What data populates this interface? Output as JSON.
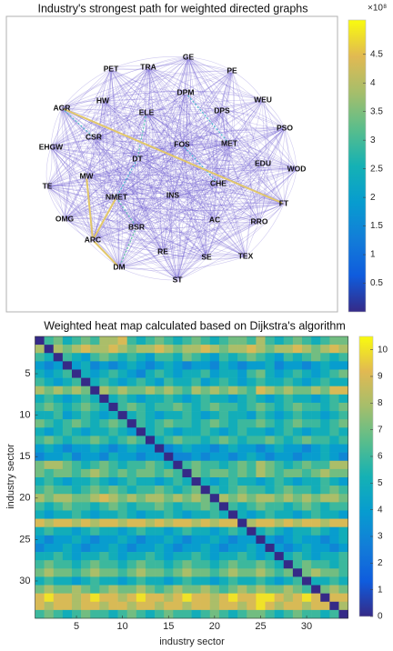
{
  "chart_data": [
    {
      "type": "network",
      "title": "Industry's strongest path for weighted directed graphs",
      "nodes": [
        "GE",
        "PE",
        "TRA",
        "PET",
        "DPM",
        "WEU",
        "HW",
        "AGR",
        "ELE",
        "DPS",
        "PSO",
        "CSR",
        "FOS",
        "MET",
        "EHGW",
        "DT",
        "EDU",
        "WOD",
        "MW",
        "TE",
        "CHE",
        "NMET",
        "INS",
        "FT",
        "OMG",
        "AC",
        "BSR",
        "RRO",
        "ARC",
        "RE",
        "SE",
        "TEX",
        "DM",
        "ST"
      ],
      "colormap": "parula",
      "clim": [
        0,
        510000000
      ],
      "colorbar_exponent": "×10⁸",
      "cticks": [
        {
          "value": 50000000,
          "label": "0.5"
        },
        {
          "value": 100000000,
          "label": "1"
        },
        {
          "value": 150000000,
          "label": "1.5"
        },
        {
          "value": 200000000,
          "label": "2"
        },
        {
          "value": 250000000,
          "label": "2.5"
        },
        {
          "value": 300000000,
          "label": "3"
        },
        {
          "value": 350000000,
          "label": "3.5"
        },
        {
          "value": 400000000,
          "label": "4"
        },
        {
          "value": 450000000,
          "label": "4.5"
        }
      ]
    },
    {
      "type": "heatmap",
      "title": "Weighted heat map calculated based on Dijkstra's algorithm",
      "xlabel": "industry sector",
      "ylabel": "industry sector",
      "colormap": "parula",
      "xlim": [
        0.5,
        34.5
      ],
      "ylim": [
        0.5,
        34.5
      ],
      "xticks": [
        5,
        10,
        15,
        20,
        25,
        30
      ],
      "yticks": [
        5,
        10,
        15,
        20,
        25,
        30
      ],
      "clim": [
        0,
        10.5
      ],
      "cticks": [
        0,
        1,
        2,
        3,
        4,
        5,
        6,
        7,
        8,
        9,
        10
      ],
      "values": [
        [
          0,
          6,
          7,
          5,
          6,
          7,
          6,
          8,
          8,
          9,
          6,
          5,
          6,
          7,
          6,
          5,
          6,
          7,
          6,
          5,
          6,
          7,
          7,
          6,
          8,
          6,
          5,
          6,
          7,
          6,
          5,
          6,
          7,
          7
        ],
        [
          8,
          0,
          8,
          7,
          8,
          9,
          8,
          8,
          9,
          8,
          7,
          8,
          8,
          9,
          8,
          7,
          8,
          8,
          9,
          8,
          7,
          8,
          8,
          9,
          8,
          7,
          8,
          8,
          9,
          8,
          7,
          8,
          9,
          8
        ],
        [
          6,
          5,
          0,
          6,
          5,
          4,
          6,
          7,
          6,
          5,
          6,
          5,
          4,
          6,
          6,
          5,
          7,
          6,
          5,
          4,
          6,
          5,
          6,
          7,
          6,
          5,
          4,
          6,
          5,
          6,
          7,
          6,
          5,
          6
        ],
        [
          4,
          3,
          4,
          0,
          4,
          5,
          3,
          4,
          3,
          4,
          5,
          4,
          3,
          4,
          5,
          4,
          3,
          4,
          4,
          3,
          5,
          4,
          3,
          4,
          4,
          5,
          3,
          4,
          4,
          3,
          4,
          5,
          4,
          4
        ],
        [
          5,
          4,
          5,
          6,
          0,
          5,
          4,
          5,
          6,
          5,
          4,
          3,
          5,
          6,
          5,
          4,
          5,
          5,
          6,
          4,
          5,
          5,
          4,
          6,
          7,
          5,
          4,
          5,
          6,
          5,
          4,
          5,
          6,
          7
        ],
        [
          6,
          5,
          4,
          5,
          6,
          0,
          5,
          6,
          5,
          4,
          5,
          6,
          5,
          4,
          6,
          5,
          5,
          6,
          4,
          5,
          6,
          5,
          4,
          5,
          6,
          5,
          5,
          6,
          5,
          4,
          5,
          6,
          5,
          5
        ],
        [
          8,
          7,
          8,
          7,
          8,
          7,
          0,
          8,
          7,
          8,
          7,
          7,
          8,
          7,
          8,
          7,
          6,
          8,
          7,
          8,
          7,
          8,
          7,
          6,
          9,
          8,
          7,
          8,
          7,
          7,
          8,
          7,
          9,
          9
        ],
        [
          5,
          6,
          5,
          4,
          5,
          6,
          5,
          0,
          5,
          6,
          5,
          4,
          5,
          5,
          6,
          5,
          4,
          5,
          6,
          5,
          5,
          4,
          5,
          6,
          5,
          4,
          5,
          6,
          5,
          5,
          4,
          5,
          6,
          5
        ],
        [
          6,
          7,
          6,
          5,
          6,
          7,
          6,
          5,
          0,
          6,
          7,
          6,
          5,
          6,
          6,
          7,
          6,
          5,
          6,
          7,
          6,
          6,
          5,
          6,
          7,
          6,
          5,
          6,
          7,
          6,
          6,
          5,
          6,
          7
        ],
        [
          5,
          5,
          6,
          4,
          5,
          6,
          5,
          4,
          5,
          0,
          5,
          6,
          5,
          4,
          5,
          5,
          6,
          5,
          4,
          5,
          6,
          5,
          5,
          4,
          6,
          5,
          4,
          5,
          6,
          5,
          5,
          4,
          5,
          6
        ],
        [
          7,
          6,
          5,
          6,
          7,
          6,
          5,
          6,
          7,
          6,
          0,
          6,
          5,
          6,
          7,
          6,
          6,
          5,
          6,
          7,
          6,
          5,
          6,
          6,
          7,
          6,
          5,
          6,
          7,
          6,
          6,
          5,
          6,
          7
        ],
        [
          5,
          4,
          5,
          6,
          5,
          4,
          5,
          5,
          6,
          5,
          4,
          0,
          5,
          6,
          5,
          4,
          5,
          5,
          6,
          5,
          4,
          5,
          6,
          5,
          5,
          4,
          5,
          6,
          5,
          4,
          5,
          5,
          6,
          5
        ],
        [
          6,
          7,
          6,
          5,
          6,
          6,
          7,
          6,
          5,
          6,
          7,
          6,
          0,
          5,
          6,
          7,
          6,
          6,
          5,
          6,
          7,
          6,
          5,
          6,
          6,
          7,
          6,
          5,
          6,
          7,
          6,
          6,
          5,
          6
        ],
        [
          4,
          5,
          4,
          3,
          4,
          4,
          5,
          4,
          3,
          4,
          5,
          4,
          4,
          0,
          3,
          4,
          5,
          4,
          4,
          3,
          4,
          5,
          4,
          4,
          3,
          4,
          5,
          4,
          4,
          3,
          4,
          5,
          4,
          4
        ],
        [
          3,
          4,
          4,
          5,
          3,
          4,
          4,
          3,
          5,
          4,
          4,
          3,
          4,
          4,
          0,
          3,
          3,
          4,
          3,
          4,
          4,
          3,
          4,
          5,
          4,
          3,
          4,
          4,
          3,
          4,
          4,
          5,
          4,
          3
        ],
        [
          7,
          8,
          8,
          7,
          6,
          5,
          6,
          7,
          6,
          5,
          6,
          6,
          7,
          6,
          5,
          0,
          6,
          7,
          6,
          6,
          5,
          6,
          7,
          6,
          8,
          7,
          6,
          5,
          6,
          7,
          6,
          6,
          8,
          8
        ],
        [
          7,
          6,
          7,
          7,
          6,
          7,
          8,
          7,
          6,
          7,
          6,
          7,
          7,
          6,
          7,
          6,
          0,
          7,
          6,
          7,
          7,
          6,
          7,
          6,
          8,
          7,
          6,
          7,
          7,
          6,
          7,
          8,
          7,
          7
        ],
        [
          5,
          6,
          5,
          4,
          5,
          5,
          6,
          5,
          4,
          5,
          6,
          5,
          5,
          4,
          5,
          6,
          5,
          0,
          5,
          4,
          5,
          6,
          5,
          5,
          4,
          5,
          6,
          5,
          4,
          5,
          5,
          6,
          5,
          4
        ],
        [
          6,
          7,
          6,
          6,
          5,
          6,
          7,
          6,
          7,
          6,
          5,
          6,
          6,
          7,
          6,
          5,
          6,
          7,
          0,
          6,
          5,
          6,
          7,
          6,
          6,
          5,
          6,
          7,
          6,
          6,
          5,
          6,
          7,
          6
        ],
        [
          8,
          7,
          8,
          8,
          7,
          7,
          8,
          9,
          8,
          7,
          8,
          7,
          8,
          8,
          7,
          8,
          7,
          8,
          7,
          0,
          8,
          7,
          8,
          7,
          8,
          8,
          7,
          8,
          7,
          8,
          7,
          8,
          8,
          7
        ],
        [
          6,
          5,
          6,
          7,
          6,
          6,
          5,
          6,
          7,
          6,
          5,
          6,
          6,
          7,
          6,
          5,
          6,
          6,
          7,
          6,
          0,
          6,
          5,
          6,
          7,
          6,
          6,
          5,
          6,
          7,
          6,
          5,
          6,
          6
        ],
        [
          5,
          4,
          5,
          5,
          6,
          5,
          4,
          5,
          5,
          6,
          5,
          4,
          5,
          5,
          6,
          5,
          4,
          5,
          5,
          6,
          5,
          0,
          5,
          4,
          5,
          6,
          5,
          5,
          4,
          5,
          6,
          5,
          5,
          4
        ],
        [
          9,
          8,
          9,
          9,
          8,
          9,
          8,
          9,
          9,
          8,
          9,
          9,
          8,
          9,
          8,
          9,
          9,
          8,
          9,
          8,
          9,
          9,
          0,
          8,
          9,
          9,
          8,
          9,
          8,
          9,
          9,
          8,
          9,
          9
        ],
        [
          5,
          6,
          5,
          5,
          4,
          5,
          6,
          5,
          5,
          4,
          5,
          6,
          5,
          5,
          4,
          5,
          6,
          5,
          5,
          4,
          5,
          6,
          5,
          0,
          5,
          6,
          5,
          4,
          5,
          5,
          6,
          5,
          4,
          5
        ],
        [
          4,
          3,
          4,
          4,
          5,
          4,
          3,
          4,
          4,
          5,
          4,
          3,
          4,
          4,
          5,
          4,
          3,
          4,
          4,
          5,
          4,
          3,
          4,
          4,
          0,
          4,
          3,
          4,
          5,
          4,
          4,
          3,
          4,
          5
        ],
        [
          3,
          4,
          4,
          5,
          4,
          3,
          4,
          4,
          5,
          4,
          3,
          4,
          4,
          5,
          4,
          3,
          4,
          4,
          5,
          4,
          3,
          4,
          4,
          5,
          4,
          0,
          4,
          3,
          4,
          5,
          4,
          4,
          3,
          4
        ],
        [
          5,
          5,
          6,
          5,
          4,
          5,
          5,
          6,
          5,
          4,
          5,
          5,
          6,
          5,
          4,
          5,
          5,
          6,
          5,
          4,
          5,
          5,
          6,
          5,
          4,
          5,
          0,
          5,
          6,
          5,
          4,
          5,
          5,
          6
        ],
        [
          6,
          7,
          6,
          6,
          5,
          6,
          7,
          6,
          6,
          5,
          6,
          7,
          6,
          6,
          5,
          6,
          7,
          6,
          6,
          5,
          6,
          7,
          6,
          6,
          7,
          6,
          5,
          0,
          6,
          7,
          6,
          6,
          5,
          6
        ],
        [
          7,
          8,
          7,
          7,
          6,
          7,
          8,
          7,
          7,
          6,
          7,
          8,
          7,
          7,
          6,
          7,
          8,
          7,
          7,
          6,
          7,
          8,
          7,
          7,
          8,
          7,
          6,
          7,
          0,
          7,
          8,
          7,
          7,
          6
        ],
        [
          5,
          6,
          5,
          5,
          4,
          5,
          6,
          5,
          5,
          4,
          5,
          6,
          5,
          5,
          4,
          5,
          6,
          5,
          5,
          4,
          5,
          6,
          5,
          5,
          6,
          5,
          4,
          5,
          6,
          0,
          5,
          5,
          6,
          5
        ],
        [
          7,
          8,
          7,
          7,
          8,
          7,
          6,
          7,
          8,
          7,
          7,
          8,
          7,
          6,
          7,
          8,
          7,
          7,
          8,
          7,
          6,
          7,
          8,
          7,
          8,
          7,
          7,
          8,
          7,
          6,
          0,
          7,
          8,
          7
        ],
        [
          9,
          10,
          9,
          9,
          8,
          9,
          10,
          9,
          9,
          8,
          9,
          10,
          9,
          9,
          8,
          9,
          10,
          9,
          9,
          8,
          9,
          10,
          9,
          9,
          10,
          10,
          9,
          8,
          9,
          10,
          9,
          0,
          9,
          9
        ],
        [
          9,
          8,
          9,
          9,
          8,
          9,
          9,
          8,
          9,
          9,
          8,
          9,
          9,
          8,
          9,
          9,
          8,
          9,
          9,
          8,
          9,
          9,
          8,
          9,
          10,
          9,
          8,
          9,
          9,
          8,
          9,
          9,
          0,
          8
        ],
        [
          6,
          7,
          6,
          5,
          6,
          7,
          6,
          6,
          5,
          6,
          7,
          6,
          5,
          6,
          7,
          6,
          6,
          5,
          6,
          7,
          6,
          5,
          6,
          7,
          7,
          6,
          5,
          6,
          7,
          6,
          6,
          5,
          6,
          0
        ]
      ]
    }
  ]
}
